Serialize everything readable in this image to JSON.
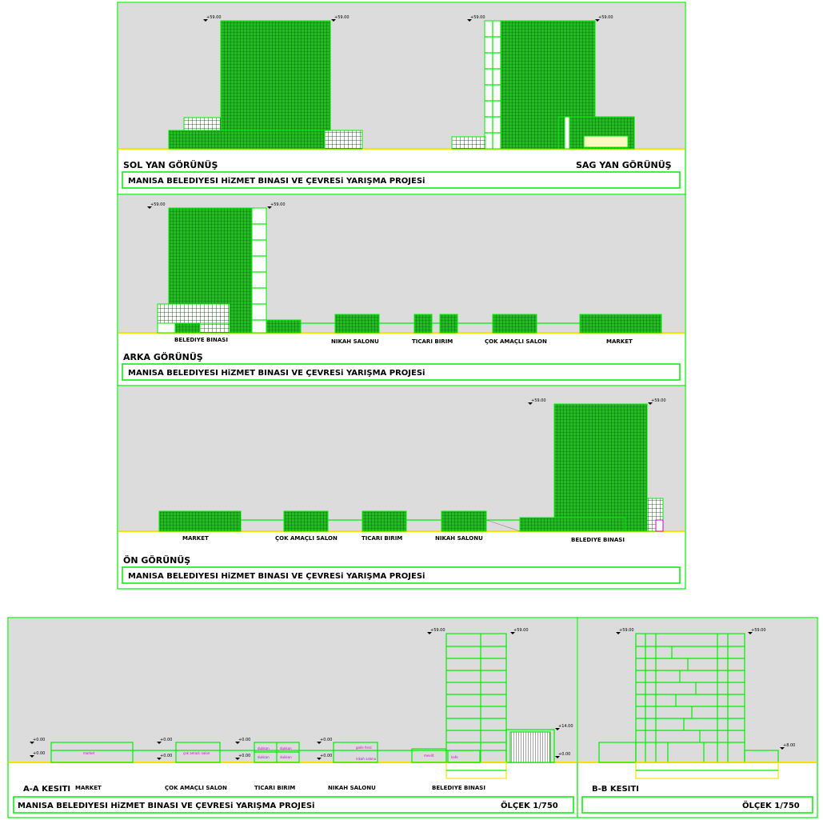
{
  "project_title": "MANISA BELEDIYESI  HiZMET BINASI VE ÇEVRESi  YARIŞMA PROJESi",
  "scale_label": "ÖLÇEK 1/750",
  "panels": {
    "side": {
      "left_title": "SOL YAN GÖRÜNÜŞ",
      "right_title": "SAG YAN GÖRÜNÜŞ"
    },
    "rear": {
      "title": "ARKA GÖRÜNÜŞ"
    },
    "front": {
      "title": "ÖN GÖRÜNÜŞ"
    },
    "section_a": {
      "title": "A-A KESITI"
    },
    "section_b": {
      "title": "B-B KESITI"
    }
  },
  "building_labels": {
    "belediye": "BELEDIYE BINASI",
    "nikah": "NIKAH SALONU",
    "ticari": "TICARI BIRIM",
    "cok": "ÇOK AMAÇLI SALON",
    "market": "MARKET"
  },
  "levels": {
    "top": "+59.00",
    "mid": "+14.00",
    "zero": "+0.00",
    "low": "+8.00"
  },
  "room_labels": {
    "market": "market",
    "cok": "çok amaclı salon",
    "dukkan": "dukkan",
    "galle": "galle ferzi",
    "nikah": "nikah salonu",
    "kafe": "kafe",
    "mevlit": "mevlit"
  },
  "colors": {
    "line": "#00ee00",
    "fill": "#22bb22",
    "sky": "#dcdcdc",
    "ground": "#f2e600",
    "label": "#d000d0"
  }
}
